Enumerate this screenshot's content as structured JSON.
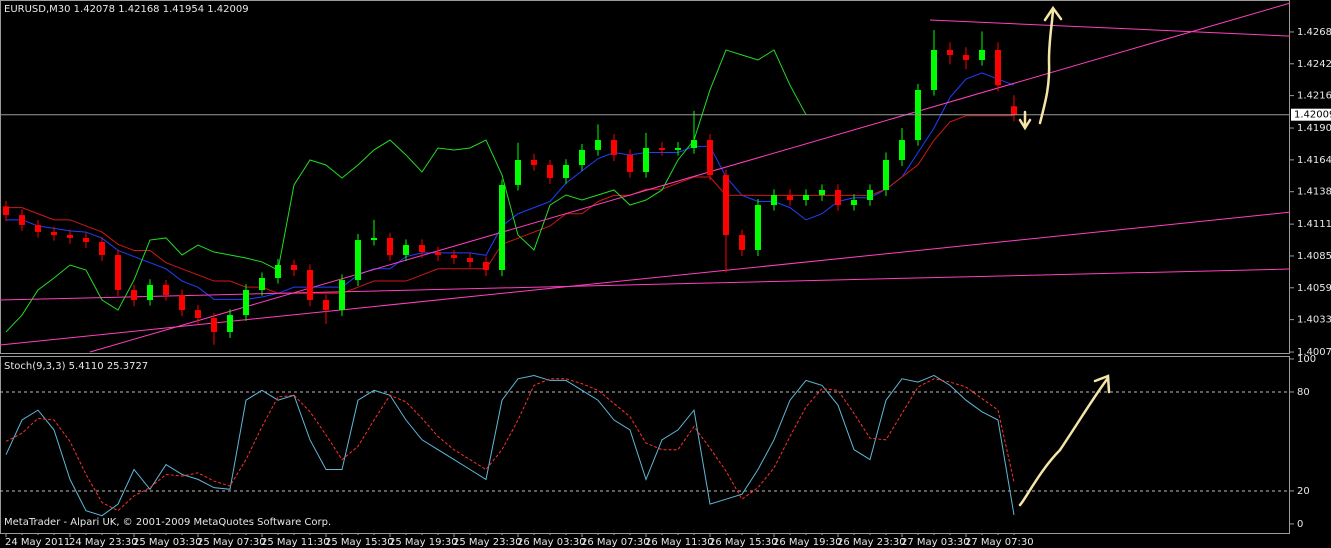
{
  "chart_data": [
    {
      "type": "candlestick",
      "title": "EURUSD,M30  1.42078 1.42168 1.41954 1.42009",
      "up_color": "#00ff00",
      "down_color": "#ff0000",
      "open": [
        1.4126,
        1.41189,
        1.41108,
        1.41051,
        1.41026,
        1.41002,
        1.40969,
        1.40863,
        1.40577,
        1.40495,
        1.40618,
        1.40536,
        1.40413,
        1.40348,
        1.40234,
        1.40372,
        1.40577,
        1.40675,
        1.40781,
        1.4074,
        1.40495,
        1.40413,
        1.40658,
        1.40985,
        1.41002,
        1.40863,
        1.40944,
        1.40887,
        1.40863,
        1.40838,
        1.40806,
        1.4074,
        1.41435,
        1.41639,
        1.41598,
        1.41492,
        1.41598,
        1.41721,
        1.41802,
        1.4168,
        1.41541,
        1.41737,
        1.41721,
        1.41737,
        1.41802,
        1.41516,
        1.41026,
        1.40904,
        1.41271,
        1.41353,
        1.41312,
        1.41353,
        1.41394,
        1.41271,
        1.41312,
        1.41394,
        1.41639,
        1.41802,
        1.42211,
        1.42538,
        1.42497,
        1.42456,
        1.42538,
        1.42078
      ],
      "high": [
        1.41305,
        1.41235,
        1.4115,
        1.41095,
        1.4107,
        1.41045,
        1.4101,
        1.40905,
        1.4062,
        1.40665,
        1.4066,
        1.4058,
        1.40455,
        1.4039,
        1.4042,
        1.40625,
        1.4072,
        1.4083,
        1.40825,
        1.40785,
        1.4054,
        1.40705,
        1.41035,
        1.4115,
        1.41045,
        1.4099,
        1.4099,
        1.4093,
        1.40905,
        1.4088,
        1.4085,
        1.4148,
        1.4178,
        1.4169,
        1.4164,
        1.41645,
        1.4177,
        1.4193,
        1.4185,
        1.41725,
        1.4186,
        1.41785,
        1.41785,
        1.4204,
        1.4185,
        1.4156,
        1.4107,
        1.4132,
        1.414,
        1.414,
        1.414,
        1.4144,
        1.4144,
        1.4136,
        1.4144,
        1.417,
        1.419,
        1.4226,
        1.427,
        1.426,
        1.4256,
        1.4269,
        1.426,
        1.42168
      ],
      "low": [
        1.4114,
        1.4106,
        1.41005,
        1.4098,
        1.40955,
        1.4092,
        1.40815,
        1.4053,
        1.40445,
        1.4045,
        1.4049,
        1.40365,
        1.403,
        1.4013,
        1.40185,
        1.40325,
        1.4053,
        1.4063,
        1.4069,
        1.40445,
        1.403,
        1.40365,
        1.4061,
        1.4094,
        1.40815,
        1.40815,
        1.4084,
        1.40815,
        1.4079,
        1.4076,
        1.4069,
        1.4069,
        1.4139,
        1.4155,
        1.41445,
        1.41445,
        1.4155,
        1.41675,
        1.4163,
        1.41495,
        1.41495,
        1.41675,
        1.41675,
        1.4169,
        1.4147,
        1.4072,
        1.40855,
        1.40855,
        1.41225,
        1.41265,
        1.41265,
        1.41305,
        1.41225,
        1.41225,
        1.41265,
        1.41345,
        1.4159,
        1.41755,
        1.42165,
        1.4242,
        1.4238,
        1.4241,
        1.422,
        1.41954
      ],
      "close": [
        1.41189,
        1.41108,
        1.41051,
        1.41026,
        1.41002,
        1.40969,
        1.40863,
        1.40577,
        1.40495,
        1.40618,
        1.40536,
        1.40413,
        1.40348,
        1.40234,
        1.40372,
        1.40577,
        1.40675,
        1.40781,
        1.4074,
        1.40495,
        1.40413,
        1.40658,
        1.40985,
        1.41002,
        1.40863,
        1.40944,
        1.40887,
        1.40863,
        1.40838,
        1.40806,
        1.4074,
        1.41435,
        1.41639,
        1.41598,
        1.41492,
        1.41598,
        1.41721,
        1.41802,
        1.4168,
        1.41541,
        1.41737,
        1.41721,
        1.41737,
        1.41802,
        1.41516,
        1.41026,
        1.40904,
        1.41271,
        1.41353,
        1.41312,
        1.41353,
        1.41394,
        1.41271,
        1.41312,
        1.41394,
        1.41639,
        1.41802,
        1.42211,
        1.42538,
        1.42497,
        1.42456,
        1.42538,
        1.4225,
        1.42009
      ],
      "series": [
        {
          "color": "#2040ff",
          "values": [
            1.4115,
            1.4115,
            1.411,
            1.4108,
            1.4106,
            1.4105,
            1.41,
            1.409,
            1.4085,
            1.408,
            1.4075,
            1.4065,
            1.406,
            1.405,
            1.405,
            1.405,
            1.4052,
            1.4055,
            1.406,
            1.406,
            1.406,
            1.406,
            1.407,
            1.4075,
            1.4075,
            1.4085,
            1.4088,
            1.4088,
            1.4088,
            1.4088,
            1.4086,
            1.411,
            1.412,
            1.4125,
            1.413,
            1.4145,
            1.4155,
            1.4165,
            1.417,
            1.4168,
            1.417,
            1.417,
            1.417,
            1.4175,
            1.4175,
            1.415,
            1.4135,
            1.413,
            1.413,
            1.4125,
            1.4115,
            1.412,
            1.413,
            1.4133,
            1.4133,
            1.414,
            1.415,
            1.417,
            1.419,
            1.4215,
            1.423,
            1.4235,
            1.423,
            1.4225
          ]
        },
        {
          "color": "#d01818",
          "values": [
            1.4125,
            1.4125,
            1.412,
            1.4115,
            1.4115,
            1.411,
            1.4105,
            1.4095,
            1.409,
            1.409,
            1.408,
            1.4075,
            1.407,
            1.4065,
            1.4065,
            1.406,
            1.406,
            1.4055,
            1.4055,
            1.4055,
            1.4055,
            1.4055,
            1.406,
            1.4065,
            1.4065,
            1.4065,
            1.407,
            1.4075,
            1.4075,
            1.4075,
            1.4075,
            1.4095,
            1.41,
            1.4105,
            1.411,
            1.412,
            1.412,
            1.413,
            1.4135,
            1.4135,
            1.414,
            1.414,
            1.4145,
            1.415,
            1.415,
            1.4135,
            1.4135,
            1.4135,
            1.4135,
            1.4135,
            1.4135,
            1.4135,
            1.4135,
            1.4135,
            1.4135,
            1.414,
            1.415,
            1.416,
            1.418,
            1.4195,
            1.42,
            1.42,
            1.42,
            1.42
          ]
        },
        {
          "color": "#22dd22",
          "values": [
            1.40234,
            1.40372,
            1.40577,
            1.40675,
            1.40781,
            1.4074,
            1.40495,
            1.40413,
            1.40658,
            1.40985,
            1.41002,
            1.40863,
            1.40944,
            1.40887,
            1.40863,
            1.40838,
            1.40806,
            1.4074,
            1.41435,
            1.41639,
            1.41598,
            1.41492,
            1.41598,
            1.41721,
            1.41802,
            1.4168,
            1.41541,
            1.41737,
            1.41721,
            1.41737,
            1.41802,
            1.41516,
            1.41026,
            1.40904,
            1.41271,
            1.41353,
            1.41312,
            1.41353,
            1.41394,
            1.41271,
            1.41312,
            1.41394,
            1.41639,
            1.41802,
            1.42211,
            1.42538,
            1.42497,
            1.42456,
            1.42538,
            1.4225,
            1.42009,
            null,
            null,
            null,
            null,
            null,
            null,
            null,
            null,
            null,
            null,
            null,
            null,
            null
          ]
        }
      ],
      "trendlines": [
        {
          "color": "#ff40c0",
          "x": [
            5.25,
            80.25
          ],
          "y": [
            1.4007,
            1.42921
          ]
        },
        {
          "color": "#ff40c0",
          "x": [
            57.75,
            82.8
          ],
          "y": [
            1.42783,
            1.42636
          ]
        },
        {
          "color": "#ff40c0",
          "x": [
            -0.375,
            82.8
          ],
          "y": [
            1.40127,
            1.41247
          ]
        },
        {
          "color": "#ff40c0",
          "x": [
            -0.375,
            82.8
          ],
          "y": [
            1.40495,
            1.40756
          ]
        }
      ],
      "ylim": [
        1.40054,
        1.42946
      ],
      "yticks": [
        {
          "value": 1.4007,
          "label": "1.40070"
        },
        1.40335,
        1.40595,
        1.40855,
        1.41115,
        {
          "value": 1.4138,
          "label": "1.41380"
        },
        {
          "value": 1.4164,
          "label": "1.41640"
        },
        {
          "value": 1.419,
          "label": "1.41900"
        },
        1.42165,
        1.42425,
        1.42685
      ]
    },
    {
      "type": "line",
      "title": "Stoch(9,3,3) 5.4110 25.3727",
      "footer": "MetaTrader - Alpari UK, © 2001-2009 MetaQuotes Software Corp.",
      "categories": [
        "24 May 2011",
        null,
        null,
        null,
        "24 May 23:30",
        null,
        null,
        null,
        "25 May 03:30",
        null,
        null,
        null,
        "25 May 07:30",
        null,
        null,
        null,
        "25 May 11:30",
        null,
        null,
        null,
        "25 May 15:30",
        null,
        null,
        null,
        "25 May 19:30",
        null,
        null,
        null,
        "25 May 23:30",
        null,
        null,
        null,
        "26 May 03:30",
        null,
        null,
        null,
        "26 May 07:30",
        null,
        null,
        null,
        "26 May 11:30",
        null,
        null,
        null,
        "26 May 15:30",
        null,
        null,
        null,
        "26 May 19:30",
        null,
        null,
        null,
        "26 May 23:30",
        null,
        null,
        null,
        "27 May 03:30",
        null,
        null,
        null,
        "27 May 07:30",
        null,
        null,
        null
      ],
      "series": [
        {
          "color": "#5fb8d8",
          "values": [
            42,
            63,
            69,
            57,
            27,
            8,
            5,
            12,
            33,
            21,
            36,
            30,
            27,
            22,
            21,
            75,
            81,
            75,
            78,
            51,
            33,
            33,
            75,
            81,
            78,
            63,
            51,
            45,
            39,
            33,
            27,
            75,
            88,
            90,
            87,
            87,
            81,
            75,
            63,
            57,
            27,
            51,
            57,
            69,
            12,
            15,
            18,
            33,
            51,
            75,
            87,
            84,
            72,
            45,
            39,
            75,
            88,
            86,
            90,
            84,
            75,
            68,
            63,
            5.411
          ]
        },
        {
          "color": "#ff3030",
          "dashed": true,
          "values": [
            50,
            55,
            64,
            63,
            50,
            30,
            13,
            8,
            17,
            22,
            30,
            29,
            31,
            26,
            23,
            39,
            59,
            77,
            78,
            68,
            54,
            39,
            47,
            63,
            78,
            74,
            64,
            53,
            45,
            39,
            33,
            45,
            63,
            84,
            88,
            88,
            85,
            81,
            73,
            65,
            49,
            45,
            45,
            59,
            46,
            32,
            15,
            22,
            34,
            53,
            71,
            82,
            81,
            67,
            52,
            51,
            67,
            83,
            88,
            86,
            83,
            76,
            69,
            25.3727
          ]
        }
      ],
      "ylim": [
        -5.5,
        101.2
      ],
      "yticks": [
        0,
        20,
        80,
        100
      ],
      "levels": [
        20,
        80
      ]
    }
  ]
}
